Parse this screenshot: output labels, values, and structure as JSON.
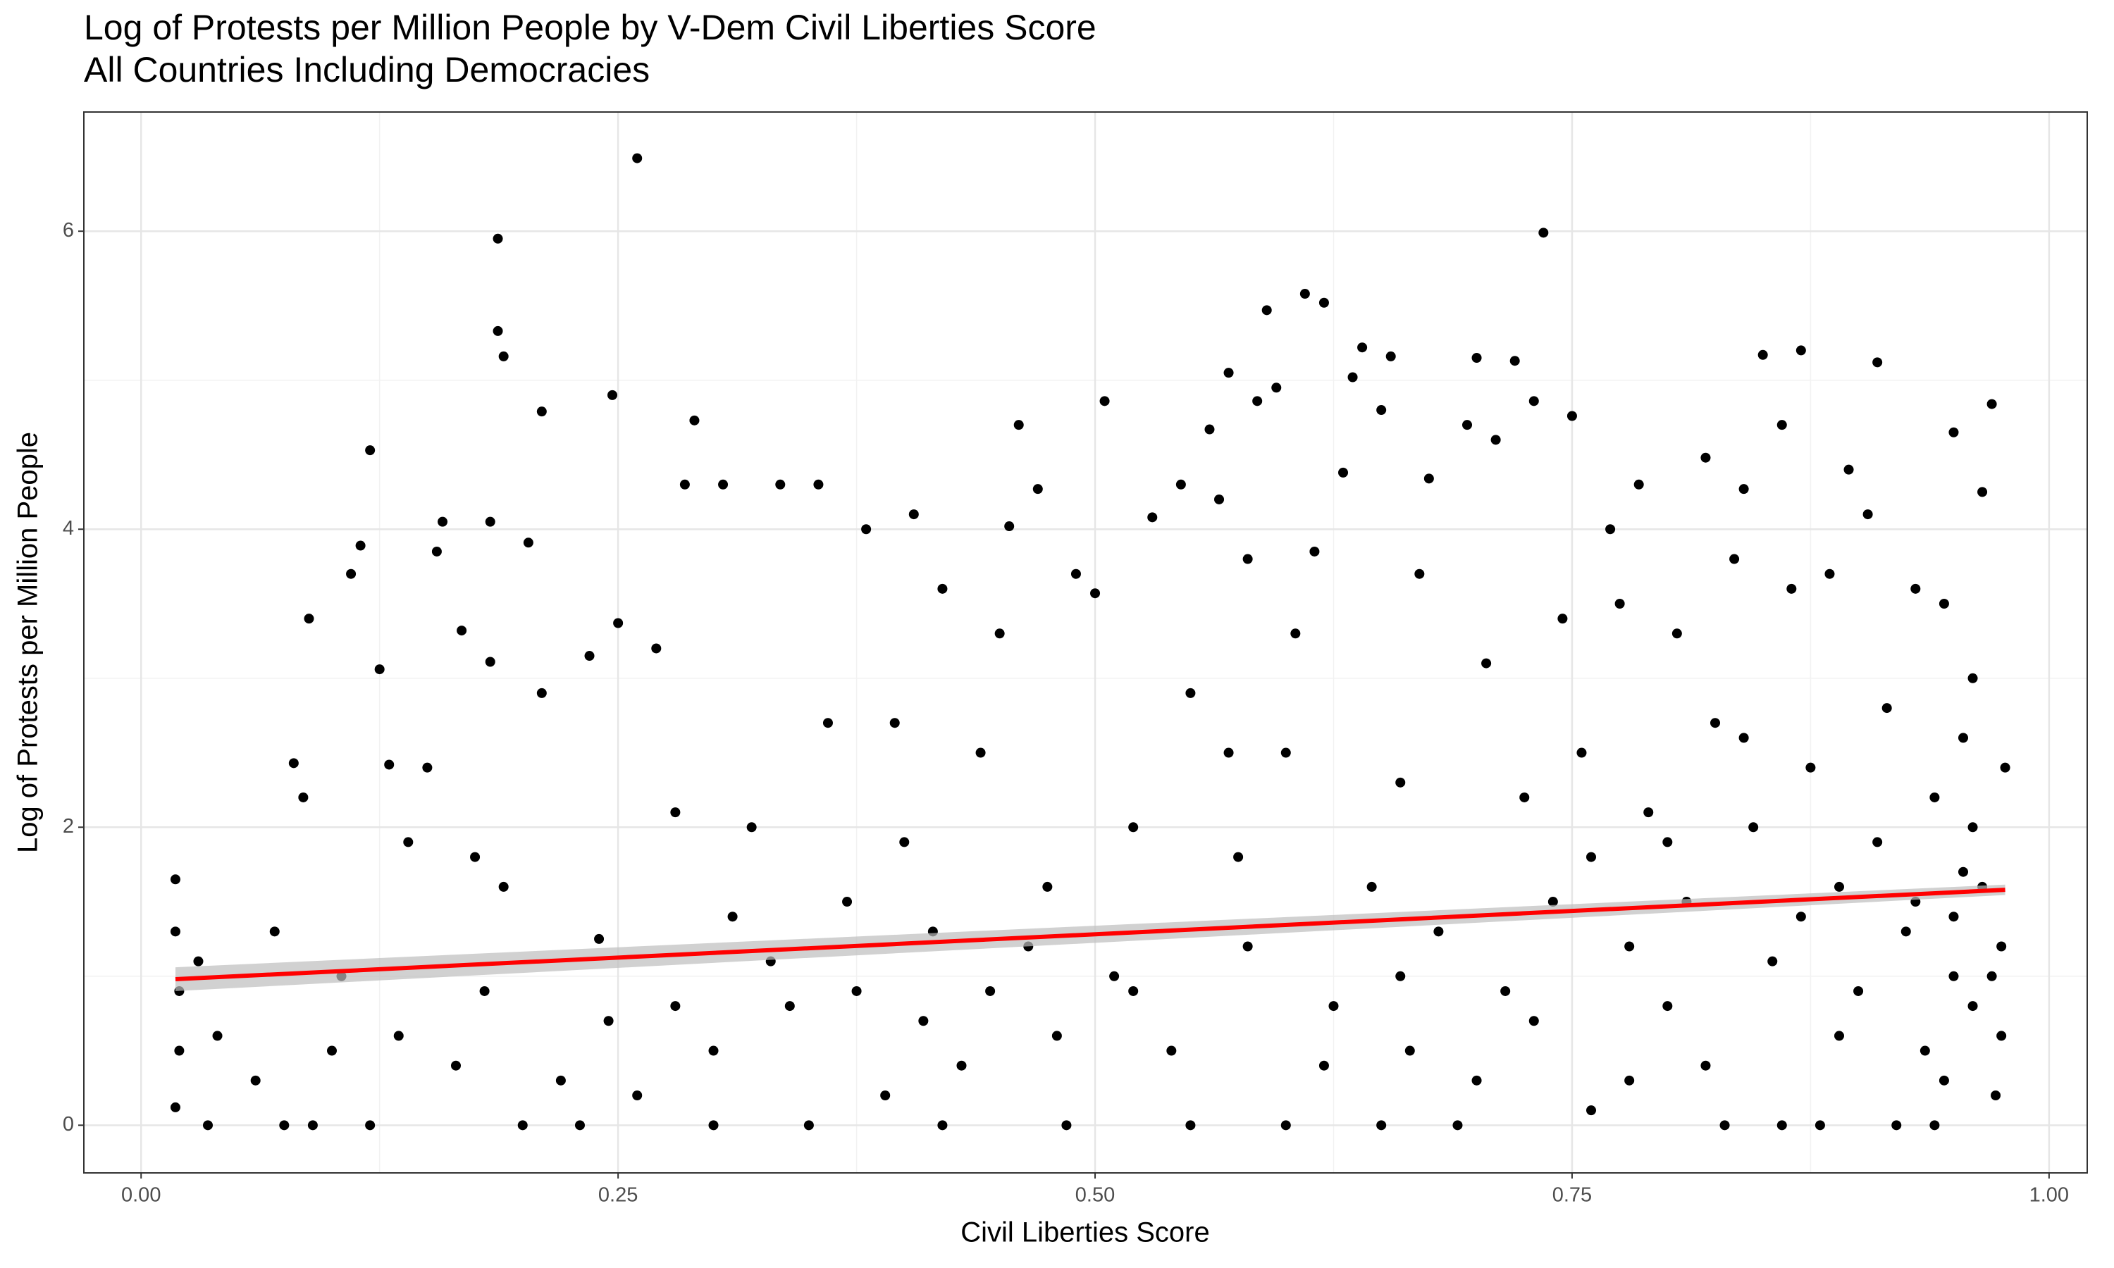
{
  "chart_data": {
    "type": "scatter",
    "title": "Log of Protests per Million People by V-Dem Civil Liberties Score",
    "subtitle": "All Countries Including Democracies",
    "x_label": "Civil Liberties Score",
    "y_label": "Log of Protests per Million People",
    "xlim": [
      -0.03,
      1.02
    ],
    "ylim": [
      -0.32,
      6.8
    ],
    "xticks": [
      {
        "value": 0,
        "label": "0.00"
      },
      0.25,
      {
        "value": 0.5,
        "label": "0.50"
      },
      0.75,
      {
        "value": 1,
        "label": "1.00"
      }
    ],
    "yticks": [
      0,
      2,
      4,
      6
    ],
    "xminor": [
      0.125,
      0.375,
      0.625,
      0.875
    ],
    "yminor": [
      1,
      3,
      5
    ],
    "grid": true,
    "color": "#000000",
    "x": [
      0.018,
      0.018,
      0.02,
      0.02,
      0.018,
      0.03,
      0.035,
      0.04,
      0.06,
      0.07,
      0.075,
      0.08,
      0.085,
      0.088,
      0.09,
      0.1,
      0.105,
      0.11,
      0.115,
      0.12,
      0.125,
      0.13,
      0.135,
      0.14,
      0.15,
      0.155,
      0.158,
      0.165,
      0.168,
      0.175,
      0.18,
      0.183,
      0.183,
      0.19,
      0.2,
      0.203,
      0.21,
      0.22,
      0.235,
      0.24,
      0.245,
      0.25,
      0.23,
      0.26,
      0.187,
      0.187,
      0.19,
      0.247,
      0.21,
      0.12,
      0.27,
      0.28,
      0.285,
      0.29,
      0.3,
      0.305,
      0.31,
      0.32,
      0.335,
      0.34,
      0.355,
      0.36,
      0.37,
      0.38,
      0.39,
      0.4,
      0.405,
      0.41,
      0.42,
      0.43,
      0.44,
      0.45,
      0.455,
      0.46,
      0.465,
      0.47,
      0.48,
      0.49,
      0.35,
      0.42,
      0.33,
      0.375,
      0.395,
      0.415,
      0.445,
      0.475,
      0.485,
      0.3,
      0.26,
      0.28,
      0.5,
      0.505,
      0.51,
      0.52,
      0.53,
      0.54,
      0.545,
      0.55,
      0.56,
      0.565,
      0.57,
      0.575,
      0.58,
      0.585,
      0.59,
      0.595,
      0.6,
      0.605,
      0.61,
      0.615,
      0.62,
      0.625,
      0.63,
      0.635,
      0.64,
      0.645,
      0.65,
      0.655,
      0.66,
      0.665,
      0.67,
      0.675,
      0.68,
      0.69,
      0.695,
      0.7,
      0.705,
      0.71,
      0.715,
      0.72,
      0.725,
      0.73,
      0.735,
      0.74,
      0.745,
      0.55,
      0.6,
      0.65,
      0.7,
      0.52,
      0.58,
      0.62,
      0.57,
      0.66,
      0.73,
      0.75,
      0.755,
      0.76,
      0.77,
      0.775,
      0.78,
      0.785,
      0.79,
      0.8,
      0.805,
      0.81,
      0.82,
      0.825,
      0.83,
      0.835,
      0.84,
      0.845,
      0.85,
      0.855,
      0.86,
      0.865,
      0.87,
      0.875,
      0.88,
      0.885,
      0.89,
      0.895,
      0.9,
      0.905,
      0.91,
      0.915,
      0.92,
      0.925,
      0.93,
      0.935,
      0.94,
      0.945,
      0.95,
      0.955,
      0.96,
      0.965,
      0.97,
      0.972,
      0.975,
      0.977,
      0.96,
      0.95,
      0.94,
      0.93,
      0.91,
      0.89,
      0.87,
      0.86,
      0.84,
      0.82,
      0.8,
      0.78,
      0.76,
      0.965,
      0.955,
      0.945,
      0.97,
      0.975,
      0.96,
      0.95
    ],
    "values": [
      1.65,
      1.3,
      0.9,
      0.5,
      0.12,
      1.1,
      0,
      0.6,
      0.3,
      1.3,
      0,
      2.43,
      2.2,
      3.4,
      0,
      0.5,
      1.0,
      3.7,
      3.89,
      0,
      3.06,
      2.42,
      0.6,
      1.9,
      2.4,
      3.85,
      4.05,
      0.4,
      3.32,
      1.8,
      0.9,
      4.05,
      3.11,
      1.6,
      0,
      3.91,
      2.9,
      0.3,
      3.15,
      1.25,
      0.7,
      3.37,
      0,
      6.49,
      5.95,
      5.33,
      5.16,
      4.9,
      4.79,
      4.53,
      3.2,
      2.1,
      4.3,
      4.73,
      0.5,
      4.3,
      1.4,
      2.0,
      4.3,
      0.8,
      4.3,
      2.7,
      1.5,
      4.0,
      0.2,
      1.9,
      4.1,
      0.7,
      3.6,
      0.4,
      2.5,
      3.3,
      4.02,
      4.7,
      1.2,
      4.27,
      0.6,
      3.7,
      0,
      0,
      1.1,
      0.9,
      2.7,
      1.3,
      0.9,
      1.6,
      0,
      0,
      0.2,
      0.8,
      3.57,
      4.86,
      1.0,
      2.0,
      4.08,
      0.5,
      4.3,
      2.9,
      4.67,
      4.2,
      5.05,
      1.8,
      3.8,
      4.86,
      5.47,
      4.95,
      2.5,
      3.3,
      5.58,
      3.85,
      5.52,
      0.8,
      4.38,
      5.02,
      5.22,
      1.6,
      4.8,
      5.16,
      2.3,
      0.5,
      3.7,
      4.34,
      1.3,
      0,
      4.7,
      5.15,
      3.1,
      4.6,
      0.9,
      5.13,
      2.2,
      4.86,
      5.99,
      1.5,
      3.4,
      0,
      0,
      0,
      0.3,
      0.9,
      1.2,
      0.4,
      2.5,
      1.0,
      0.7,
      4.76,
      2.5,
      1.8,
      4.0,
      3.5,
      0.3,
      4.3,
      2.1,
      0.8,
      3.3,
      1.5,
      4.48,
      2.7,
      0,
      3.8,
      4.27,
      2.0,
      5.17,
      1.1,
      4.7,
      3.6,
      5.2,
      2.4,
      0,
      3.7,
      1.6,
      4.4,
      0.9,
      4.1,
      5.12,
      2.8,
      0,
      1.3,
      3.6,
      0.5,
      2.2,
      3.5,
      4.65,
      1.7,
      3.0,
      4.25,
      4.84,
      0.2,
      1.2,
      2.4,
      0.8,
      1.0,
      0,
      1.5,
      1.9,
      0.6,
      1.4,
      0,
      2.6,
      0.4,
      1.9,
      1.2,
      0.1,
      1.6,
      2.6,
      0.3,
      1.0,
      0.6,
      2.0,
      1.4
    ],
    "trend": {
      "color": "#ff0000",
      "band_color": "#bebebe",
      "x": [
        0.018,
        0.977
      ],
      "values": [
        0.98,
        1.58
      ],
      "band_lower": [
        0.9,
        1.545
      ],
      "band_upper": [
        1.06,
        1.615
      ]
    }
  }
}
